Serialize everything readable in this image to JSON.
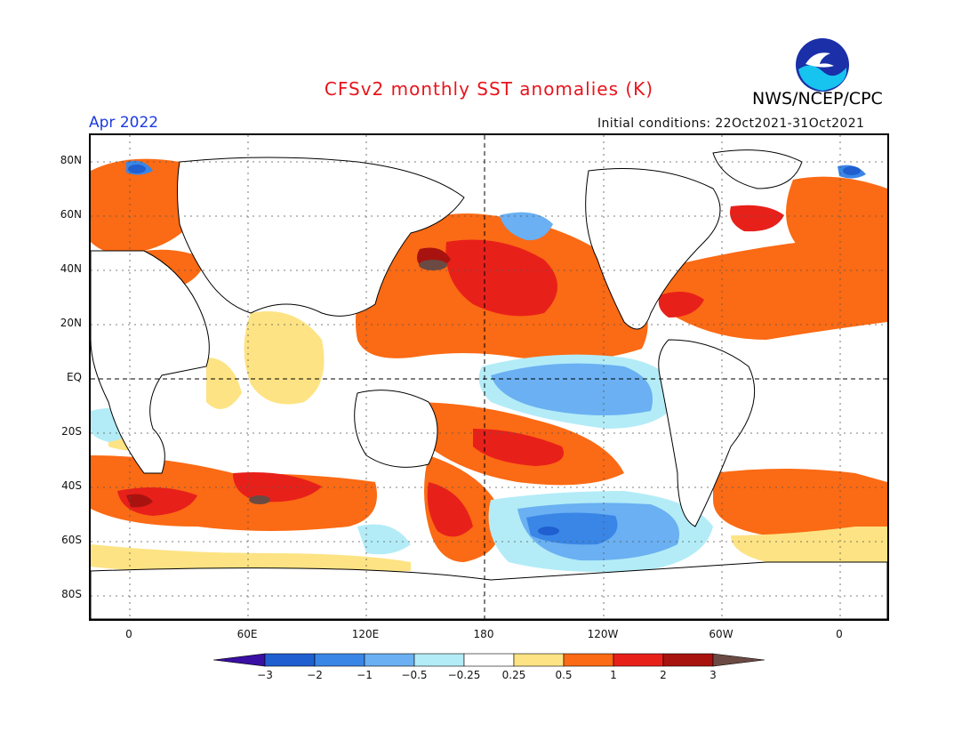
{
  "header": {
    "title": "CFSv2 monthly SST anomalies (K)",
    "org": "NWS/NCEP/CPC",
    "logo_text": "NOAA",
    "month": "Apr 2022",
    "initial_conditions": "Initial conditions: 22Oct2021-31Oct2021"
  },
  "map": {
    "lat_labels": [
      "80N",
      "60N",
      "40N",
      "20N",
      "EQ",
      "20S",
      "40S",
      "60S",
      "80S"
    ],
    "lon_labels": [
      "0",
      "60E",
      "120E",
      "180",
      "120W",
      "60W",
      "0"
    ]
  },
  "colorbar": {
    "labels": [
      "-3",
      "-2",
      "-1",
      "-0.5",
      "-0.25",
      "0.25",
      "0.5",
      "1",
      "2",
      "3"
    ],
    "colors": [
      "#3a0fa3",
      "#1f5fd0",
      "#3a86e6",
      "#6ab0f2",
      "#b3ecf7",
      "#ffffff",
      "#fde383",
      "#fb6a14",
      "#e8201a",
      "#a9130f",
      "#6b4a43"
    ]
  }
}
